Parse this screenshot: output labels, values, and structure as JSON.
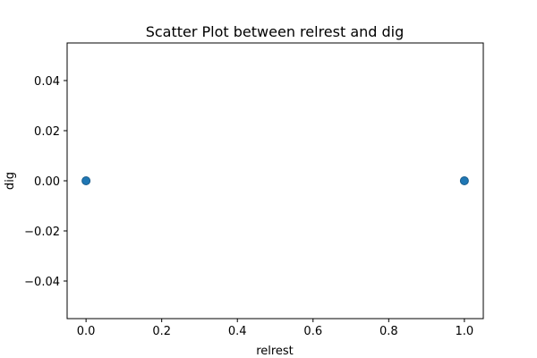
{
  "chart_data": {
    "type": "scatter",
    "title": "Scatter Plot between relrest and dig",
    "xlabel": "relrest",
    "ylabel": "dig",
    "xlim": [
      -0.05,
      1.05
    ],
    "ylim": [
      -0.055,
      0.055
    ],
    "xticks": [
      0.0,
      0.2,
      0.4,
      0.6,
      0.8,
      1.0
    ],
    "xtick_labels": [
      "0.0",
      "0.2",
      "0.4",
      "0.6",
      "0.8",
      "1.0"
    ],
    "yticks": [
      -0.04,
      -0.02,
      0.0,
      0.02,
      0.04
    ],
    "ytick_labels": [
      "−0.04",
      "−0.02",
      "0.00",
      "0.02",
      "0.04"
    ],
    "grid": false,
    "series": [
      {
        "x": [
          0,
          1
        ],
        "y": [
          0,
          0
        ]
      }
    ],
    "colors": {
      "marker_fill": "#1f77b4",
      "marker_edge": "#1a5d8c"
    }
  }
}
